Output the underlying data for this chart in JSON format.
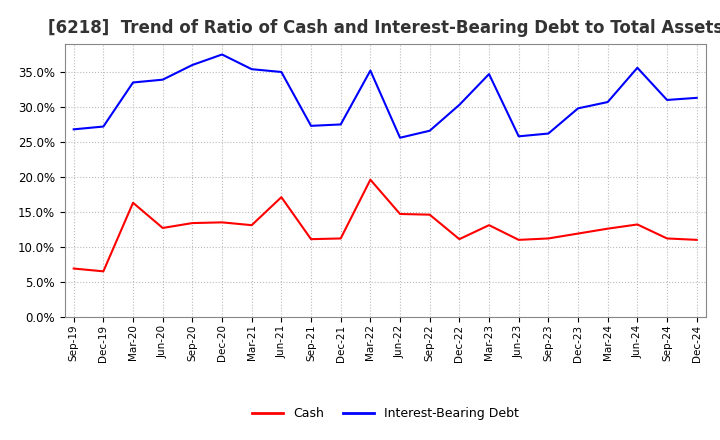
{
  "title": "[6218]  Trend of Ratio of Cash and Interest-Bearing Debt to Total Assets",
  "x_labels": [
    "Sep-19",
    "Dec-19",
    "Mar-20",
    "Jun-20",
    "Sep-20",
    "Dec-20",
    "Mar-21",
    "Jun-21",
    "Sep-21",
    "Dec-21",
    "Mar-22",
    "Jun-22",
    "Sep-22",
    "Dec-22",
    "Mar-23",
    "Jun-23",
    "Sep-23",
    "Dec-23",
    "Mar-24",
    "Jun-24",
    "Sep-24",
    "Dec-24"
  ],
  "cash": [
    6.9,
    6.5,
    16.3,
    12.7,
    13.4,
    13.5,
    13.1,
    17.1,
    11.1,
    11.2,
    19.6,
    14.7,
    14.6,
    11.1,
    13.1,
    11.0,
    11.2,
    11.9,
    12.6,
    13.2,
    11.2,
    11.0
  ],
  "debt": [
    26.8,
    27.2,
    33.5,
    33.9,
    36.0,
    37.5,
    35.4,
    35.0,
    27.3,
    27.5,
    35.2,
    25.6,
    26.6,
    30.3,
    34.7,
    25.8,
    26.2,
    29.8,
    30.7,
    35.6,
    31.0,
    31.3
  ],
  "cash_color": "#ff0000",
  "debt_color": "#0000ff",
  "background_color": "#ffffff",
  "plot_bg_color": "#ffffff",
  "grid_color": "#aaaaaa",
  "ylim": [
    0,
    39
  ],
  "yticks": [
    0,
    5,
    10,
    15,
    20,
    25,
    30,
    35
  ],
  "title_fontsize": 12,
  "legend_labels": [
    "Cash",
    "Interest-Bearing Debt"
  ]
}
